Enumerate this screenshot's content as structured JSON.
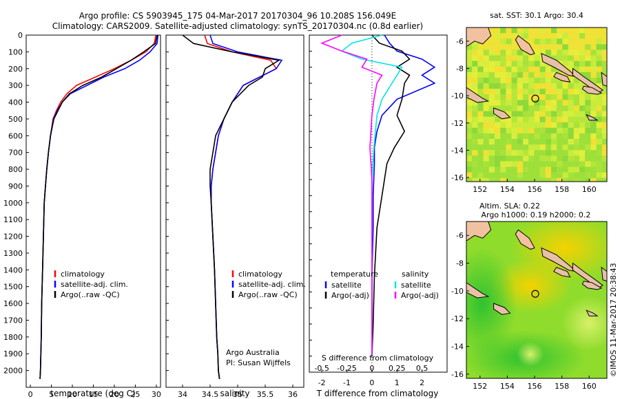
{
  "header": {
    "line1": "Argo profile: CS 5903945_175 04-Mar-2017 20170304_96 10.208S 156.049E",
    "line2": "Climatology: CARS2009. Satellite-adjusted climatology: synTS_20170304.nc (0.8d earlier)"
  },
  "colors": {
    "climatology": "#ff0000",
    "satellite": "#0000ff",
    "argo": "#000000",
    "salinity_satellite": "#00e5e5",
    "salinity_argo": "#ff00ff"
  },
  "chart_data": [
    {
      "type": "line",
      "name": "temperature-profile",
      "xlabel": "temperature (deg C)",
      "xlim": [
        -1,
        31
      ],
      "ylim": [
        2100,
        0
      ],
      "xticks": [
        0,
        5,
        10,
        15,
        20,
        25,
        30
      ],
      "yticks": [
        0,
        100,
        200,
        300,
        400,
        500,
        600,
        700,
        800,
        900,
        1000,
        1100,
        1200,
        1300,
        1400,
        1500,
        1600,
        1700,
        1800,
        1900,
        2000
      ],
      "legend": [
        "climatology",
        "satellite-adj. clim.",
        "Argo(..raw -QC)"
      ],
      "legend_position": "bottom-right",
      "series": [
        {
          "name": "climatology",
          "x": [
            29.9,
            29.5,
            27.5,
            24.0,
            20.0,
            15.5,
            11.0,
            8.7,
            7.2,
            6.2,
            5.4,
            4.8,
            4.3,
            3.9,
            3.6,
            3.3,
            3.1,
            2.9,
            2.7,
            2.6,
            2.5,
            2.4,
            2.3
          ],
          "y": [
            0,
            50,
            100,
            150,
            200,
            250,
            300,
            350,
            400,
            450,
            500,
            600,
            700,
            800,
            900,
            1000,
            1200,
            1400,
            1600,
            1800,
            1900,
            2000,
            2050
          ]
        },
        {
          "name": "satellite-adj. clim.",
          "x": [
            30.4,
            30.2,
            28.5,
            26.0,
            22.5,
            17.5,
            13.5,
            9.5,
            7.6,
            6.4,
            5.5,
            4.8,
            4.3,
            3.9,
            3.6,
            3.3,
            3.1,
            2.9,
            2.7,
            2.6,
            2.5,
            2.4,
            2.3
          ],
          "y": [
            0,
            50,
            100,
            150,
            200,
            250,
            300,
            350,
            400,
            450,
            500,
            600,
            700,
            800,
            900,
            1000,
            1200,
            1400,
            1600,
            1800,
            1900,
            2000,
            2050
          ]
        },
        {
          "name": "Argo(..raw -QC)",
          "x": [
            30.2,
            29.8,
            27.0,
            24.0,
            20.5,
            17.0,
            12.5,
            9.3,
            7.6,
            6.6,
            5.6,
            4.8,
            4.3,
            3.9,
            3.6,
            3.3,
            3.1,
            2.9,
            2.7,
            2.6,
            2.5,
            2.4,
            2.3
          ],
          "y": [
            0,
            50,
            100,
            150,
            200,
            250,
            300,
            350,
            400,
            450,
            500,
            600,
            700,
            800,
            900,
            1000,
            1200,
            1400,
            1600,
            1800,
            1900,
            2000,
            2050
          ]
        }
      ]
    },
    {
      "type": "line",
      "name": "salinity-profile",
      "xlabel": "salinity",
      "xlim": [
        33.7,
        36.2
      ],
      "ylim": [
        2100,
        0
      ],
      "xticks": [
        34,
        34.5,
        35,
        35.5,
        36
      ],
      "xticklabels": [
        "34",
        "34.5",
        "35",
        "35.5",
        "36"
      ],
      "legend": [
        "climatology",
        "satellite-adj. clim.",
        "Argo(..raw -QC)"
      ],
      "legend_position": "bottom-right",
      "annotation": [
        "Argo Australia",
        "PI: Susan Wijffels"
      ],
      "series": [
        {
          "name": "climatology",
          "x": [
            34.4,
            34.45,
            34.9,
            35.6,
            35.7,
            35.4,
            35.1,
            34.9,
            34.75,
            34.65,
            34.6,
            34.55,
            34.52,
            34.52,
            34.55,
            34.58,
            34.6,
            34.62,
            34.64,
            34.65,
            34.67
          ],
          "y": [
            0,
            50,
            100,
            150,
            200,
            250,
            300,
            400,
            500,
            600,
            700,
            800,
            900,
            1000,
            1200,
            1400,
            1600,
            1800,
            1900,
            2000,
            2050
          ]
        },
        {
          "name": "satellite-adj. clim.",
          "x": [
            34.5,
            34.55,
            35.0,
            35.8,
            35.7,
            35.4,
            35.1,
            34.9,
            34.75,
            34.65,
            34.6,
            34.55,
            34.52,
            34.52,
            34.55,
            34.58,
            34.6,
            34.62,
            34.64,
            34.65,
            34.67
          ],
          "y": [
            0,
            50,
            100,
            150,
            200,
            250,
            300,
            400,
            500,
            600,
            700,
            800,
            900,
            1000,
            1200,
            1400,
            1600,
            1800,
            1900,
            2000,
            2050
          ]
        },
        {
          "name": "Argo(..raw -QC)",
          "x": [
            34.0,
            34.2,
            34.9,
            35.75,
            35.5,
            35.45,
            35.2,
            34.9,
            34.75,
            34.6,
            34.55,
            34.5,
            34.5,
            34.52,
            34.55,
            34.58,
            34.6,
            34.62,
            34.64,
            34.65,
            34.67
          ],
          "y": [
            0,
            50,
            100,
            150,
            200,
            250,
            300,
            400,
            500,
            600,
            700,
            800,
            900,
            1000,
            1200,
            1400,
            1600,
            1800,
            1900,
            2000,
            2050
          ]
        }
      ]
    },
    {
      "type": "line",
      "name": "difference-profile",
      "xlabel_bottom": "T difference from climatology",
      "xlabel_top": "S difference from climatology",
      "xlim": [
        -2.5,
        3.0
      ],
      "ylim": [
        2100,
        0
      ],
      "xticks": [
        -2,
        -1,
        0,
        1,
        2
      ],
      "sticks_label_values": [
        -0.5,
        -0.25,
        0,
        0.25,
        0.5
      ],
      "sticks_labels": [
        "-0.5",
        "-0.25",
        "0",
        "0.25",
        "0.5"
      ],
      "legend_temperature": {
        "title": "temperature",
        "items": [
          "satellite",
          "Argo(-adj)"
        ]
      },
      "legend_salinity": {
        "title": "salinity",
        "items": [
          "satellite",
          "Argo(-adj)"
        ]
      },
      "series": [
        {
          "name": "temperature satellite",
          "x": [
            0.5,
            0.7,
            1.0,
            2.0,
            2.5,
            2.0,
            2.5,
            1.0,
            0.4,
            0.2,
            0.1,
            0.1,
            0.05,
            0.05,
            0.0,
            0.0,
            0.0
          ],
          "y": [
            0,
            50,
            100,
            150,
            200,
            250,
            300,
            400,
            500,
            600,
            700,
            800,
            1000,
            1200,
            1500,
            1800,
            2000
          ]
        },
        {
          "name": "temperature Argo",
          "x": [
            0.0,
            0.3,
            1.2,
            1.5,
            1.0,
            1.5,
            1.3,
            1.2,
            1.0,
            1.3,
            0.9,
            0.6,
            0.4,
            0.2,
            0.1,
            0.05,
            0.0
          ],
          "y": [
            0,
            50,
            100,
            150,
            200,
            250,
            300,
            400,
            500,
            600,
            700,
            800,
            1000,
            1200,
            1500,
            1800,
            2000
          ]
        },
        {
          "name": "salinity satellite",
          "x": [
            0.1,
            -0.2,
            -0.3,
            -0.1,
            0.3,
            0.25,
            0.2,
            0.1,
            0.05,
            0.02,
            0.0,
            0.0,
            0.0,
            0.0
          ],
          "y": [
            0,
            50,
            100,
            150,
            200,
            250,
            300,
            400,
            500,
            700,
            900,
            1200,
            1500,
            2000
          ]
        },
        {
          "name": "salinity Argo",
          "x": [
            -0.3,
            -0.5,
            -0.3,
            -0.05,
            -0.1,
            0.1,
            0.05,
            0.02,
            0.0,
            -0.02,
            0.0,
            0.0,
            0.0,
            0.0
          ],
          "y": [
            0,
            50,
            100,
            150,
            200,
            250,
            300,
            400,
            500,
            700,
            900,
            1200,
            1500,
            2000
          ]
        }
      ]
    },
    {
      "type": "heatmap",
      "name": "sst-map",
      "title": "sat. SST: 30.1  Argo: 30.4",
      "xlim": [
        151,
        161.3
      ],
      "ylim": [
        -16.3,
        -5
      ],
      "xticks": [
        152,
        154,
        156,
        158,
        160
      ],
      "yticks": [
        -6,
        -8,
        -10,
        -12,
        -14,
        -16
      ],
      "marker": {
        "lon": 156.05,
        "lat": -10.21
      }
    },
    {
      "type": "heatmap",
      "name": "sla-map",
      "title_line1": "Altim. SLA: 0.22",
      "title_line2": "Argo h1000: 0.19 h2000: 0.2",
      "xlim": [
        151,
        161.3
      ],
      "ylim": [
        -16.3,
        -5
      ],
      "xticks": [
        152,
        154,
        156,
        158,
        160
      ],
      "yticks": [
        -6,
        -8,
        -10,
        -12,
        -14,
        -16
      ],
      "marker": {
        "lon": 156.05,
        "lat": -10.21
      }
    }
  ],
  "footer": {
    "credit": "©IMOS 11-Mar-2017 20:38:43"
  }
}
